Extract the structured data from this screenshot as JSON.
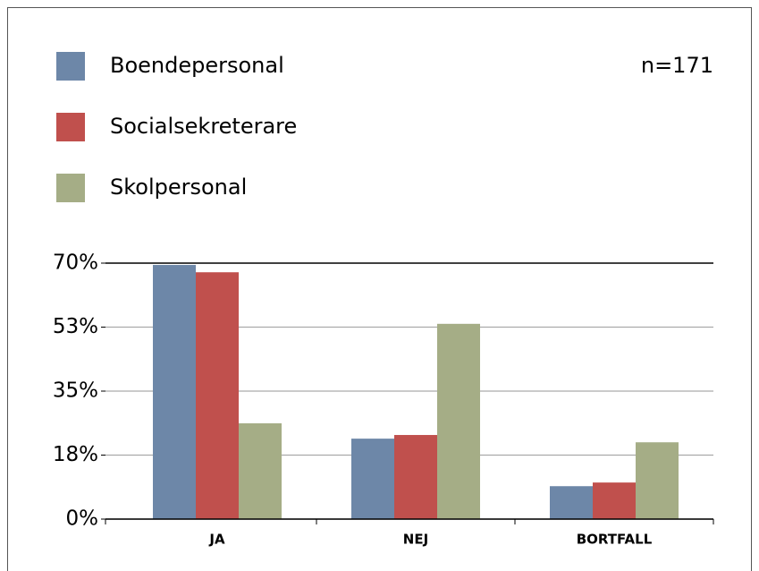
{
  "chart_data": {
    "type": "bar",
    "annotation": "n=171",
    "categories": [
      "JA",
      "NEJ",
      "BORTFALL"
    ],
    "series": [
      {
        "name": "Boendepersonal",
        "color": "#6d87a8",
        "values": [
          69.5,
          22,
          9
        ]
      },
      {
        "name": "Socialsekreterare",
        "color": "#c0504d",
        "values": [
          67.5,
          23,
          10
        ]
      },
      {
        "name": "Skolpersonal",
        "color": "#a5ad86",
        "values": [
          26.2,
          53.4,
          21
        ]
      }
    ],
    "ylim": [
      0,
      70
    ],
    "yticks": [
      {
        "value": 0,
        "label": "0%"
      },
      {
        "value": 17.5,
        "label": "18%"
      },
      {
        "value": 35,
        "label": "35%"
      },
      {
        "value": 52.5,
        "label": "53%"
      },
      {
        "value": 70,
        "label": "70%"
      }
    ],
    "grid": true
  }
}
